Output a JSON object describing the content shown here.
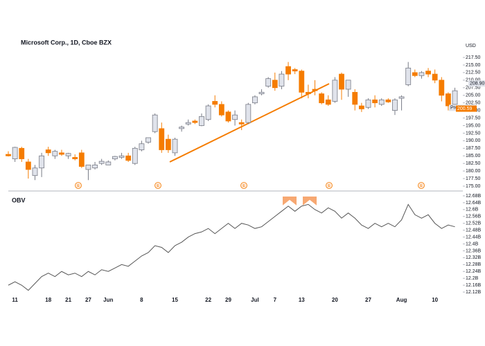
{
  "chart_data": [
    {
      "type": "candlestick",
      "title": "Microsoft Corp., 1D, Cboe BZX",
      "unit": "USD",
      "up_color": "#e0e3eb",
      "up_border": "#787b86",
      "down_color": "#f57c00",
      "categories": [
        null,
        "11",
        null,
        null,
        null,
        null,
        "18",
        null,
        null,
        "21",
        null,
        null,
        "27",
        null,
        null,
        "Jun",
        null,
        null,
        null,
        null,
        "8",
        null,
        null,
        null,
        null,
        "15",
        null,
        null,
        null,
        null,
        "22",
        null,
        null,
        "29",
        null,
        null,
        null,
        "Jul",
        null,
        null,
        "7",
        null,
        null,
        null,
        "13",
        null,
        null,
        null,
        null,
        "20",
        null,
        null,
        null,
        null,
        "27",
        null,
        null,
        null,
        null,
        "Aug",
        null,
        null,
        null,
        null,
        "10",
        null,
        null,
        null
      ],
      "open": [
        185.5,
        184,
        187.5,
        183,
        178.5,
        181,
        187,
        185,
        186,
        185,
        184.5,
        186,
        180.5,
        181,
        182.5,
        182,
        184,
        184.5,
        185,
        182.5,
        187,
        189.5,
        193,
        194,
        190.5,
        186,
        194,
        195.5,
        196.5,
        195,
        197,
        203,
        202,
        199.5,
        197,
        196,
        196,
        202.5,
        205.5,
        208,
        210,
        208,
        214.5,
        213.5,
        213,
        206,
        207,
        205.5,
        203.5,
        203,
        212,
        207,
        206,
        201.5,
        201,
        203.5,
        202,
        203.5,
        200,
        204,
        208.5,
        212.5,
        211.5,
        213,
        212,
        210,
        205.5,
        202
      ],
      "high": [
        186.5,
        188,
        188,
        184,
        182,
        186,
        188,
        187,
        187,
        186,
        185.5,
        187,
        182,
        183,
        184,
        183.5,
        185,
        186,
        186,
        188,
        190,
        191,
        199,
        196,
        192,
        191,
        195,
        197,
        197,
        199,
        202,
        205,
        203,
        200,
        200,
        197,
        202.5,
        205,
        207,
        211,
        212.5,
        213,
        216,
        214,
        213.5,
        208.5,
        210,
        206,
        205,
        211,
        212.5,
        210,
        207,
        202.5,
        204,
        205,
        204,
        204,
        204,
        205,
        216,
        213.5,
        213,
        214,
        213.5,
        211,
        206,
        207.5
      ],
      "low": [
        184.8,
        183,
        183,
        177.5,
        177,
        178,
        185,
        184,
        185,
        184,
        183.5,
        181,
        177,
        180.5,
        182,
        182,
        183.5,
        184,
        183,
        182,
        186.5,
        189,
        192.5,
        186,
        186,
        185,
        193,
        195,
        195.5,
        194.8,
        196.5,
        201,
        198,
        196,
        195,
        193.5,
        195.5,
        202,
        205,
        207.5,
        206.5,
        207,
        210,
        212,
        204,
        204,
        205,
        202,
        201.5,
        202.5,
        203.5,
        204.5,
        200,
        199.5,
        200.5,
        201,
        201.5,
        202.5,
        198.5,
        200,
        208,
        211,
        210.5,
        211,
        209,
        203,
        200,
        201.5
      ],
      "close": [
        185,
        187.8,
        184,
        180.5,
        181,
        185,
        186,
        186.5,
        185.5,
        185.8,
        184,
        181.5,
        182,
        182,
        183.2,
        183,
        184.8,
        185,
        183.5,
        187.5,
        189,
        191,
        198.5,
        187,
        187,
        190.5,
        194.5,
        196,
        196,
        198,
        201.5,
        202,
        198.5,
        196.5,
        198.5,
        195.5,
        202,
        204.5,
        206,
        210.5,
        207.5,
        212,
        212,
        213,
        206,
        205.5,
        206.5,
        202.5,
        202,
        210,
        207,
        210,
        202,
        200.5,
        203.5,
        202.5,
        203.5,
        202.8,
        203.5,
        204.5,
        214,
        211.5,
        212.5,
        212,
        210,
        205,
        201.5,
        206.5
      ],
      "events": [
        "E",
        "E",
        "E",
        "E",
        "E"
      ],
      "badges": [
        {
          "value": 208.9,
          "label": "208.90"
        },
        {
          "value": 200.86,
          "label": "Pre 200.86"
        },
        {
          "value": 200.59,
          "label": "200.59"
        }
      ],
      "ylim": [
        173.4,
        223.9
      ],
      "yticks": [
        {
          "value": 175,
          "label": "175.00"
        },
        {
          "value": 177.5,
          "label": "177.50"
        },
        {
          "value": 180,
          "label": "180.00"
        },
        {
          "value": 182.5,
          "label": "182.50"
        },
        {
          "value": 185,
          "label": "185.00"
        },
        {
          "value": 187.5,
          "label": "187.50"
        },
        {
          "value": 190,
          "label": "190.00"
        },
        {
          "value": 192.5,
          "label": "192.50"
        },
        {
          "value": 195,
          "label": "195.00"
        },
        {
          "value": 197.5,
          "label": "197.50"
        },
        {
          "value": 200,
          "label": "200.00"
        },
        {
          "value": 202.5,
          "label": "202.50"
        },
        {
          "value": 205,
          "label": "205.00"
        },
        {
          "value": 207.5,
          "label": "207.50"
        },
        {
          "value": 210,
          "label": "210.00"
        },
        {
          "value": 212.5,
          "label": "212.50"
        },
        {
          "value": 215,
          "label": "215.00"
        },
        {
          "value": 217.5,
          "label": "217.50"
        }
      ]
    },
    {
      "type": "line",
      "title": "OBV",
      "color": "#555555",
      "values": [
        12.16,
        12.18,
        12.16,
        12.13,
        12.17,
        12.21,
        12.23,
        12.21,
        12.24,
        12.22,
        12.23,
        12.21,
        12.24,
        12.22,
        12.25,
        12.24,
        12.26,
        12.28,
        12.27,
        12.3,
        12.33,
        12.35,
        12.39,
        12.38,
        12.35,
        12.39,
        12.41,
        12.44,
        12.46,
        12.47,
        12.49,
        12.46,
        12.49,
        12.52,
        12.49,
        12.52,
        12.51,
        12.49,
        12.5,
        12.53,
        12.56,
        12.59,
        12.62,
        12.59,
        12.62,
        12.63,
        12.6,
        12.58,
        12.61,
        12.59,
        12.55,
        12.58,
        12.55,
        12.51,
        12.49,
        12.52,
        12.5,
        12.52,
        12.5,
        12.54,
        12.63,
        12.57,
        12.55,
        12.57,
        12.52,
        12.49,
        12.51,
        12.5
      ],
      "ylim": [
        12.088,
        12.692
      ],
      "yticks": [
        {
          "value": 12.12,
          "label": "12.12B"
        },
        {
          "value": 12.16,
          "label": "12.16B"
        },
        {
          "value": 12.2,
          "label": "12.2B"
        },
        {
          "value": 12.24,
          "label": "12.24B"
        },
        {
          "value": 12.28,
          "label": "12.28B"
        },
        {
          "value": 12.32,
          "label": "12.32B"
        },
        {
          "value": 12.36,
          "label": "12.36B"
        },
        {
          "value": 12.4,
          "label": "12.4B"
        },
        {
          "value": 12.44,
          "label": "12.44B"
        },
        {
          "value": 12.48,
          "label": "12.48B"
        },
        {
          "value": 12.52,
          "label": "12.52B"
        },
        {
          "value": 12.56,
          "label": "12.56B"
        },
        {
          "value": 12.6,
          "label": "12.6B"
        },
        {
          "value": 12.64,
          "label": "12.64B"
        },
        {
          "value": 12.68,
          "label": "12.68B"
        }
      ]
    }
  ]
}
